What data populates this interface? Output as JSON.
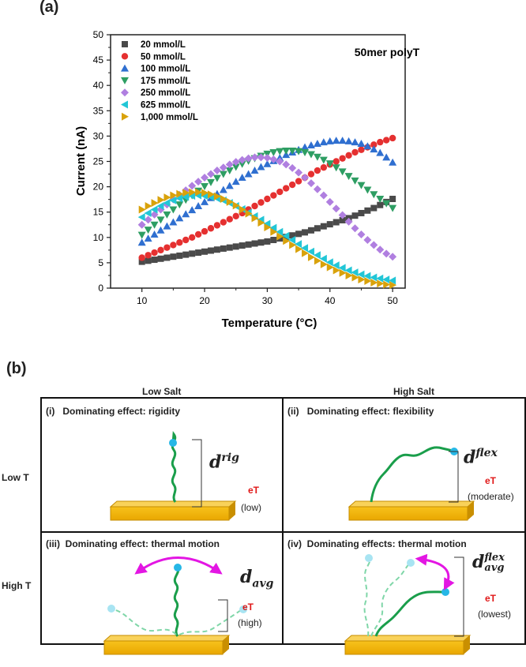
{
  "panel_a_label": "(a)",
  "panel_b_label": "(b)",
  "chart_data": {
    "type": "scatter",
    "title": "50mer polyT",
    "xlabel": "Temperature (°C)",
    "ylabel": "Current (nA)",
    "xlim": [
      5,
      52
    ],
    "ylim": [
      0,
      50
    ],
    "xticks": [
      10,
      20,
      30,
      40,
      50
    ],
    "yticks": [
      0,
      5,
      10,
      15,
      20,
      25,
      30,
      35,
      40,
      45,
      50
    ],
    "legend_position": "top-left",
    "series": [
      {
        "name": "20 mmol/L",
        "marker": "square",
        "color": "#4a4a4a",
        "x": [
          10,
          11,
          12,
          13,
          14,
          15,
          16,
          17,
          18,
          19,
          20,
          21,
          22,
          23,
          24,
          25,
          26,
          27,
          28,
          29,
          30,
          31,
          32,
          33,
          34,
          35,
          36,
          37,
          38,
          39,
          40,
          41,
          42,
          43,
          44,
          45,
          46,
          47,
          48,
          49,
          50
        ],
        "y": [
          5.2,
          5.4,
          5.6,
          5.8,
          6.0,
          6.2,
          6.4,
          6.6,
          6.8,
          7.0,
          7.2,
          7.4,
          7.6,
          7.8,
          8.0,
          8.2,
          8.4,
          8.6,
          8.8,
          9.0,
          9.2,
          9.5,
          9.8,
          10.1,
          10.4,
          10.7,
          11.0,
          11.4,
          11.8,
          12.2,
          12.6,
          13.0,
          13.4,
          13.8,
          14.3,
          14.8,
          15.3,
          15.8,
          16.4,
          17.0,
          17.6
        ]
      },
      {
        "name": "50 mmol/L",
        "marker": "circle",
        "color": "#e53030",
        "x": [
          10,
          11,
          12,
          13,
          14,
          15,
          16,
          17,
          18,
          19,
          20,
          21,
          22,
          23,
          24,
          25,
          26,
          27,
          28,
          29,
          30,
          31,
          32,
          33,
          34,
          35,
          36,
          37,
          38,
          39,
          40,
          41,
          42,
          43,
          44,
          45,
          46,
          47,
          48,
          49,
          50
        ],
        "y": [
          6.0,
          6.5,
          7.0,
          7.5,
          8.0,
          8.5,
          9.0,
          9.5,
          10.0,
          10.6,
          11.2,
          11.8,
          12.4,
          13.0,
          13.6,
          14.2,
          14.8,
          15.5,
          16.2,
          16.9,
          17.6,
          18.3,
          19.0,
          19.7,
          20.4,
          21.1,
          21.8,
          22.5,
          23.2,
          23.8,
          24.4,
          25.0,
          25.6,
          26.2,
          26.8,
          27.3,
          27.8,
          28.3,
          28.8,
          29.2,
          29.6
        ]
      },
      {
        "name": "100 mmol/L",
        "marker": "triangle-up",
        "color": "#2f6fd0",
        "x": [
          10,
          11,
          12,
          13,
          14,
          15,
          16,
          17,
          18,
          19,
          20,
          21,
          22,
          23,
          24,
          25,
          26,
          27,
          28,
          29,
          30,
          31,
          32,
          33,
          34,
          35,
          36,
          37,
          38,
          39,
          40,
          41,
          42,
          43,
          44,
          45,
          46,
          47,
          48,
          49,
          50
        ],
        "y": [
          9.0,
          9.8,
          10.6,
          11.4,
          12.2,
          13.0,
          13.8,
          14.6,
          15.4,
          16.2,
          17.0,
          17.8,
          18.6,
          19.4,
          20.2,
          21.0,
          21.8,
          22.5,
          23.2,
          23.9,
          24.5,
          25.1,
          25.7,
          26.3,
          26.8,
          27.3,
          27.8,
          28.2,
          28.5,
          28.8,
          29.0,
          29.1,
          29.1,
          29.0,
          28.8,
          28.5,
          28.0,
          27.4,
          26.7,
          25.8,
          24.8
        ]
      },
      {
        "name": "175 mmol/L",
        "marker": "triangle-down",
        "color": "#2e9e63",
        "x": [
          10,
          11,
          12,
          13,
          14,
          15,
          16,
          17,
          18,
          19,
          20,
          21,
          22,
          23,
          24,
          25,
          26,
          27,
          28,
          29,
          30,
          31,
          32,
          33,
          34,
          35,
          36,
          37,
          38,
          39,
          40,
          41,
          42,
          43,
          44,
          45,
          46,
          47,
          48,
          49,
          50
        ],
        "y": [
          10.5,
          11.5,
          12.5,
          13.5,
          14.5,
          15.5,
          16.5,
          17.4,
          18.3,
          19.2,
          20.1,
          20.9,
          21.7,
          22.5,
          23.2,
          23.9,
          24.5,
          25.1,
          25.6,
          26.1,
          26.5,
          26.8,
          27.0,
          27.1,
          27.1,
          27.0,
          26.8,
          26.4,
          25.9,
          25.3,
          24.6,
          23.8,
          23.0,
          22.1,
          21.2,
          20.3,
          19.4,
          18.5,
          17.6,
          16.7,
          15.8
        ]
      },
      {
        "name": "250 mmol/L",
        "marker": "diamond",
        "color": "#b07fe0",
        "x": [
          10,
          11,
          12,
          13,
          14,
          15,
          16,
          17,
          18,
          19,
          20,
          21,
          22,
          23,
          24,
          25,
          26,
          27,
          28,
          29,
          30,
          31,
          32,
          33,
          34,
          35,
          36,
          37,
          38,
          39,
          40,
          41,
          42,
          43,
          44,
          45,
          46,
          47,
          48,
          49,
          50
        ],
        "y": [
          12.5,
          13.5,
          14.5,
          15.5,
          16.5,
          17.5,
          18.4,
          19.3,
          20.2,
          21.0,
          21.8,
          22.5,
          23.2,
          23.8,
          24.4,
          24.9,
          25.3,
          25.6,
          25.8,
          25.8,
          25.7,
          25.4,
          25.0,
          24.4,
          23.7,
          22.8,
          21.8,
          20.7,
          19.5,
          18.3,
          17.0,
          15.7,
          14.4,
          13.1,
          11.8,
          10.6,
          9.5,
          8.5,
          7.6,
          6.8,
          6.2
        ]
      },
      {
        "name": "625 mmol/L",
        "marker": "triangle-left",
        "color": "#22c6d6",
        "x": [
          10,
          11,
          12,
          13,
          14,
          15,
          16,
          17,
          18,
          19,
          20,
          21,
          22,
          23,
          24,
          25,
          26,
          27,
          28,
          29,
          30,
          31,
          32,
          33,
          34,
          35,
          36,
          37,
          38,
          39,
          40,
          41,
          42,
          43,
          44,
          45,
          46,
          47,
          48,
          49,
          50
        ],
        "y": [
          14.0,
          14.8,
          15.5,
          16.2,
          16.8,
          17.3,
          17.7,
          18.0,
          18.2,
          18.3,
          18.2,
          18.0,
          17.7,
          17.3,
          16.8,
          16.2,
          15.6,
          14.9,
          14.2,
          13.5,
          12.7,
          11.9,
          11.1,
          10.3,
          9.5,
          8.7,
          7.9,
          7.2,
          6.5,
          5.8,
          5.1,
          4.5,
          4.0,
          3.5,
          3.1,
          2.7,
          2.4,
          2.1,
          1.9,
          1.7,
          1.5
        ]
      },
      {
        "name": "1,000 mmol/L",
        "marker": "triangle-right",
        "color": "#d9a20b",
        "x": [
          10,
          11,
          12,
          13,
          14,
          15,
          16,
          17,
          18,
          19,
          20,
          21,
          22,
          23,
          24,
          25,
          26,
          27,
          28,
          29,
          30,
          31,
          32,
          33,
          34,
          35,
          36,
          37,
          38,
          39,
          40,
          41,
          42,
          43,
          44,
          45,
          46,
          47,
          48,
          49,
          50
        ],
        "y": [
          15.5,
          16.2,
          16.8,
          17.4,
          17.9,
          18.3,
          18.6,
          18.8,
          18.9,
          18.9,
          18.8,
          18.5,
          18.1,
          17.6,
          17.0,
          16.3,
          15.5,
          14.7,
          13.8,
          12.9,
          12.0,
          11.1,
          10.2,
          9.3,
          8.5,
          7.7,
          6.9,
          6.1,
          5.4,
          4.7,
          4.1,
          3.5,
          3.0,
          2.5,
          2.1,
          1.7,
          1.4,
          1.1,
          0.9,
          0.7,
          0.6
        ]
      }
    ]
  },
  "diagram": {
    "col_headers": [
      "Low Salt",
      "High Salt"
    ],
    "row_headers": [
      "Low T",
      "High T"
    ],
    "cells": [
      {
        "roman": "(i)",
        "title": "Dominating effect: rigidity",
        "d_base": "d",
        "d_sup": "rig",
        "d_sub": "",
        "eT": "eT",
        "level": "(low)"
      },
      {
        "roman": "(ii)",
        "title": "Dominating effect: flexibility",
        "d_base": "d",
        "d_sup": "flex",
        "d_sub": "",
        "eT": "eT",
        "level": "(moderate)"
      },
      {
        "roman": "(iii)",
        "title": "Dominating effect: thermal motion",
        "d_base": "d",
        "d_sup": "",
        "d_sub": "avg",
        "eT": "eT",
        "level": "(high)"
      },
      {
        "roman": "(iv)",
        "title": "Dominating effects: thermal motion",
        "d_base": "d",
        "d_sup": "flex",
        "d_sub": "avg",
        "eT": "eT",
        "level": "(lowest)"
      }
    ]
  }
}
